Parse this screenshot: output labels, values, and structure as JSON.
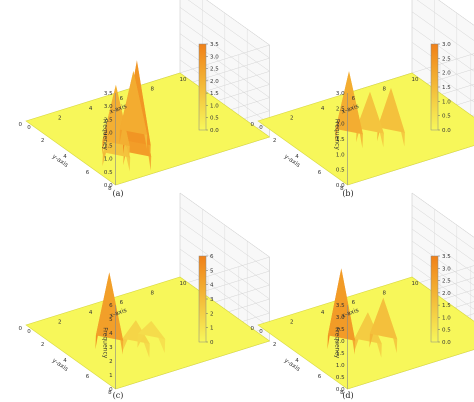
{
  "chart_data": [
    {
      "type": "surface",
      "caption": "(a)",
      "xlabel": "x-axis",
      "ylabel": "y-axis",
      "zlabel": "Frequency",
      "x_ticks": [
        "0",
        "2",
        "4",
        "6",
        "8",
        "10"
      ],
      "y_ticks": [
        "0",
        "2",
        "4",
        "6",
        "8"
      ],
      "z_ticks": [
        "0.0",
        "0.5",
        "1.0",
        "1.5",
        "2.0",
        "2.5",
        "3.0",
        "3.5"
      ],
      "zlim": [
        0,
        3.5
      ],
      "colorbar": {
        "ticks": [
          "0.0",
          "0.5",
          "1.0",
          "1.5",
          "2.0",
          "2.5",
          "3.0",
          "3.5"
        ],
        "range": [
          0,
          3.5
        ],
        "low_color": "#f7f75a",
        "high_color": "#f08018"
      },
      "peaks": [
        {
          "x": 1.5,
          "y": 6.0,
          "z": 1.8
        },
        {
          "x": 2.2,
          "y": 5.0,
          "z": 2.5
        },
        {
          "x": 2.5,
          "y": 6.5,
          "z": 3.1
        },
        {
          "x": 3.2,
          "y": 5.5,
          "z": 3.4
        },
        {
          "x": 3.7,
          "y": 4.5,
          "z": 2.6
        }
      ]
    },
    {
      "type": "surface",
      "caption": "(b)",
      "xlabel": "x-axis",
      "ylabel": "y-axis",
      "zlabel": "Frequency",
      "x_ticks": [
        "0",
        "2",
        "4",
        "6",
        "8",
        "10"
      ],
      "y_ticks": [
        "0",
        "2",
        "4",
        "6",
        "8"
      ],
      "z_ticks": [
        "0.0",
        "0.5",
        "1.0",
        "1.5",
        "2.0",
        "2.5",
        "3.0"
      ],
      "zlim": [
        0,
        3.0
      ],
      "colorbar": {
        "ticks": [
          "0.0",
          "0.5",
          "1.0",
          "1.5",
          "2.0",
          "2.5",
          "3.0"
        ],
        "range": [
          0,
          3.0
        ],
        "low_color": "#f7f75a",
        "high_color": "#f08018"
      },
      "peaks": [
        {
          "x": 3.0,
          "y": 4.0,
          "z": 2.2
        },
        {
          "x": 4.0,
          "y": 4.5,
          "z": 1.5
        },
        {
          "x": 5.0,
          "y": 5.0,
          "z": 1.6
        }
      ]
    },
    {
      "type": "surface",
      "caption": "(c)",
      "xlabel": "x-axis",
      "ylabel": "y-axis",
      "zlabel": "Frequency",
      "x_ticks": [
        "0",
        "2",
        "4",
        "6",
        "8",
        "10"
      ],
      "y_ticks": [
        "0",
        "2",
        "4",
        "6",
        "8"
      ],
      "z_ticks": [
        "0",
        "1",
        "2",
        "3",
        "4",
        "5",
        "6"
      ],
      "zlim": [
        0,
        6
      ],
      "colorbar": {
        "ticks": [
          "0",
          "1",
          "2",
          "3",
          "4",
          "5",
          "6"
        ],
        "range": [
          0,
          6
        ],
        "low_color": "#f7f75a",
        "high_color": "#f08018"
      },
      "peaks": [
        {
          "x": 2.5,
          "y": 4.0,
          "z": 5.2
        },
        {
          "x": 3.5,
          "y": 5.0,
          "z": 2.0
        },
        {
          "x": 4.5,
          "y": 5.0,
          "z": 1.6
        }
      ]
    },
    {
      "type": "surface",
      "caption": "(d)",
      "xlabel": "x-axis",
      "ylabel": "y-axis",
      "zlabel": "Frequency",
      "x_ticks": [
        "0",
        "2",
        "4",
        "6",
        "8",
        "10"
      ],
      "y_ticks": [
        "0",
        "2",
        "4",
        "6",
        "8"
      ],
      "z_ticks": [
        "0.0",
        "0.5",
        "1.0",
        "1.5",
        "2.0",
        "2.5",
        "3.0",
        "3.5"
      ],
      "zlim": [
        0,
        3.5
      ],
      "colorbar": {
        "ticks": [
          "0.0",
          "0.5",
          "1.0",
          "1.5",
          "2.0",
          "2.5",
          "3.0",
          "3.5"
        ],
        "range": [
          0,
          3.5
        ],
        "low_color": "#f7f75a",
        "high_color": "#f08018"
      },
      "peaks": [
        {
          "x": 2.5,
          "y": 4.0,
          "z": 3.2
        },
        {
          "x": 3.5,
          "y": 5.0,
          "z": 1.5
        },
        {
          "x": 4.5,
          "y": 5.0,
          "z": 1.9
        }
      ]
    }
  ]
}
